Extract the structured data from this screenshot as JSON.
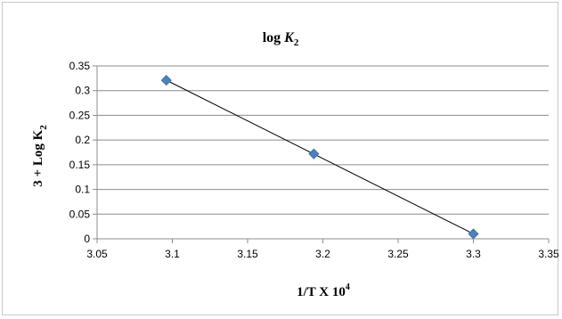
{
  "chart_data": {
    "type": "scatter",
    "title": "log K₂",
    "title_parts": {
      "main": "log ",
      "var": "K",
      "sub": "2"
    },
    "xlabel": "1/T X 10 4",
    "xlabel_parts": {
      "main": "1/T X 10",
      "sup": "4"
    },
    "ylabel": "3 + Log K2",
    "ylabel_parts": {
      "main": "3 + Log K",
      "sub": "2"
    },
    "xlim": [
      3.05,
      3.35
    ],
    "ylim": [
      0,
      0.35
    ],
    "x_ticks": [
      "3.05",
      "3.1",
      "3.15",
      "3.2",
      "3.25",
      "3.3",
      "3.35"
    ],
    "y_ticks": [
      "0",
      "0.05",
      "0.1",
      "0.15",
      "0.2",
      "0.25",
      "0.3",
      "0.35"
    ],
    "grid": {
      "horizontal": true,
      "vertical": false
    },
    "legend": "none",
    "series": [
      {
        "x": [
          3.096,
          3.194,
          3.3
        ],
        "y": [
          0.321,
          0.172,
          0.01
        ],
        "marker": "diamond",
        "color": "#4f81bd"
      }
    ],
    "trendline": {
      "type": "linear",
      "color": "#000000"
    }
  }
}
